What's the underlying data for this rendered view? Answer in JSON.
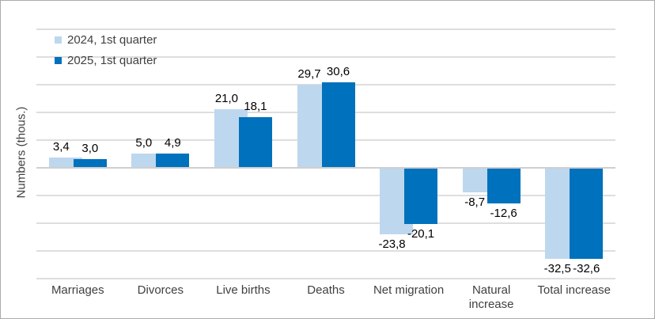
{
  "window": {
    "background": "#ffffff",
    "border_color": "#ababab"
  },
  "chart_data": {
    "type": "bar",
    "title": "",
    "ylabel": "Numbers (thous.)",
    "categories": [
      "Marriages",
      "Divorces",
      "Live births",
      "Deaths",
      "Net migration",
      "Natural increase",
      "Total increase"
    ],
    "series": [
      {
        "name": "2024, 1st quarter",
        "color": "#BDD7EE",
        "values": [
          3.4,
          5.0,
          21.0,
          29.7,
          -23.8,
          -8.7,
          -32.5
        ],
        "labels": [
          "3,4",
          "5,0",
          "21,0",
          "29,7",
          "-23,8",
          "-8,7",
          "-32,5"
        ]
      },
      {
        "name": "2025, 1st quarter",
        "color": "#0071BC",
        "values": [
          3.0,
          4.9,
          18.1,
          30.6,
          -20.1,
          -12.6,
          -32.6
        ],
        "labels": [
          "3,0",
          "4,9",
          "18,1",
          "30,6",
          "-20,1",
          "-12,6",
          "-32,6"
        ]
      }
    ],
    "ylim": [
      -40,
      50
    ],
    "grid_step": 10,
    "grid": true,
    "gridline_color": "#DEDEDE",
    "zero_line_color": "#CFCFCF",
    "legend_position": "top-left",
    "decimal_separator": ","
  }
}
